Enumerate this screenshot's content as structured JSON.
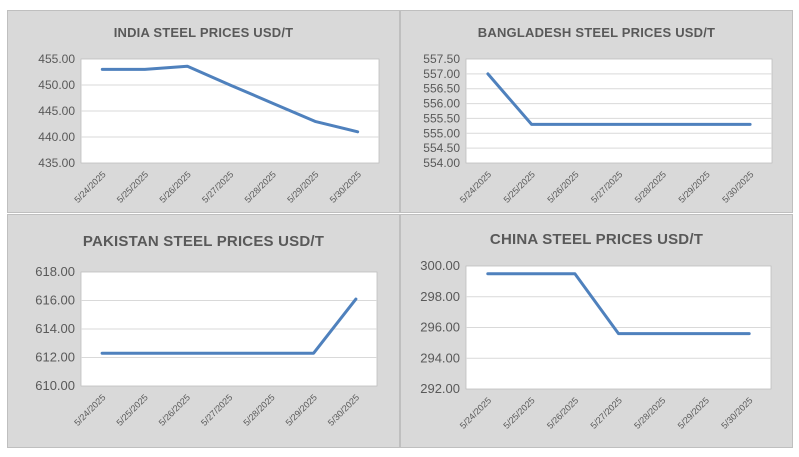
{
  "colors": {
    "panel_bg": "#d9d9d9",
    "plot_bg": "#ffffff",
    "grid": "#d9d9d9",
    "line": "#4f81bd",
    "text": "#595959"
  },
  "chart_data": [
    {
      "type": "line",
      "title": "INDIA STEEL PRICES USD/T",
      "categories": [
        "5/24/2025",
        "5/25/2025",
        "5/26/2025",
        "5/27/2025",
        "5/28/2025",
        "5/29/2025",
        "5/30/2025"
      ],
      "series": [
        {
          "values": [
            453.0,
            453.0,
            453.6,
            450.0,
            446.5,
            443.0,
            441.0
          ]
        }
      ],
      "ylim": [
        435,
        455
      ],
      "yticks": [
        "435.00",
        "440.00",
        "445.00",
        "450.00",
        "455.00"
      ],
      "grid": true,
      "xlabel": "",
      "ylabel": ""
    },
    {
      "type": "line",
      "title": "BANGLADESH STEEL PRICES USD/T",
      "categories": [
        "5/24/2025",
        "5/25/2025",
        "5/26/2025",
        "5/27/2025",
        "5/28/2025",
        "5/29/2025",
        "5/30/2025"
      ],
      "series": [
        {
          "values": [
            557.0,
            555.3,
            555.3,
            555.3,
            555.3,
            555.3,
            555.3
          ]
        }
      ],
      "ylim": [
        554,
        557.5
      ],
      "yticks": [
        "554.00",
        "554.50",
        "555.00",
        "555.50",
        "556.00",
        "556.50",
        "557.00",
        "557.50"
      ],
      "grid": true,
      "xlabel": "",
      "ylabel": ""
    },
    {
      "type": "line",
      "title": "PAKISTAN STEEL PRICES USD/T",
      "categories": [
        "5/24/2025",
        "5/25/2025",
        "5/26/2025",
        "5/27/2025",
        "5/28/2025",
        "5/29/2025",
        "5/30/2025"
      ],
      "series": [
        {
          "values": [
            612.3,
            612.3,
            612.3,
            612.3,
            612.3,
            612.3,
            616.1
          ]
        }
      ],
      "ylim": [
        610,
        618
      ],
      "yticks": [
        "610.00",
        "612.00",
        "614.00",
        "616.00",
        "618.00"
      ],
      "grid": true,
      "xlabel": "",
      "ylabel": ""
    },
    {
      "type": "line",
      "title": "CHINA STEEL PRICES USD/T",
      "categories": [
        "5/24/2025",
        "5/25/2025",
        "5/26/2025",
        "5/27/2025",
        "5/28/2025",
        "5/29/2025",
        "5/30/2025"
      ],
      "series": [
        {
          "values": [
            299.5,
            299.5,
            299.5,
            295.6,
            295.6,
            295.6,
            295.6
          ]
        }
      ],
      "ylim": [
        292,
        300
      ],
      "yticks": [
        "292.00",
        "294.00",
        "296.00",
        "298.00",
        "300.00"
      ],
      "grid": true,
      "xlabel": "",
      "ylabel": ""
    }
  ]
}
